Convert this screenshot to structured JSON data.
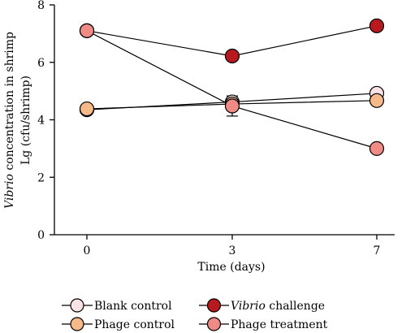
{
  "chart_data": {
    "type": "line",
    "xlabel": "Time (days)",
    "ylabel_line1_italic": "Vibrio",
    "ylabel_line1_rest": " concentration in shrimp",
    "ylabel_line2": "Lg (cfu/shrimp)",
    "ylim": [
      0,
      8
    ],
    "yticks": [
      "0",
      "2",
      "4",
      "6",
      "8"
    ],
    "categories": [
      "0",
      "3",
      "7"
    ],
    "grid": false,
    "legend_position": "bottom",
    "series": [
      {
        "name": "Blank control",
        "name_italic": "",
        "name_rest": "Blank control",
        "color": "#fbe2e4",
        "values": [
          4.35,
          4.62,
          4.92
        ],
        "err": [
          0,
          0,
          0
        ]
      },
      {
        "name": "Phage control",
        "name_italic": "",
        "name_rest": "Phage control",
        "color": "#f6b98a",
        "values": [
          4.38,
          4.55,
          4.67
        ],
        "err": [
          0,
          0,
          0
        ]
      },
      {
        "name": "Vibrio challenge",
        "name_italic": "Vibrio",
        "name_rest": " challenge",
        "color": "#b8191e",
        "values": [
          7.1,
          6.22,
          7.27
        ],
        "err": [
          0,
          0,
          0
        ]
      },
      {
        "name": "Phage treatment",
        "name_italic": "",
        "name_rest": "Phage treatment",
        "color": "#ef8a85",
        "values": [
          7.1,
          4.48,
          3.0
        ],
        "err": [
          0,
          0.35,
          0
        ]
      }
    ]
  }
}
